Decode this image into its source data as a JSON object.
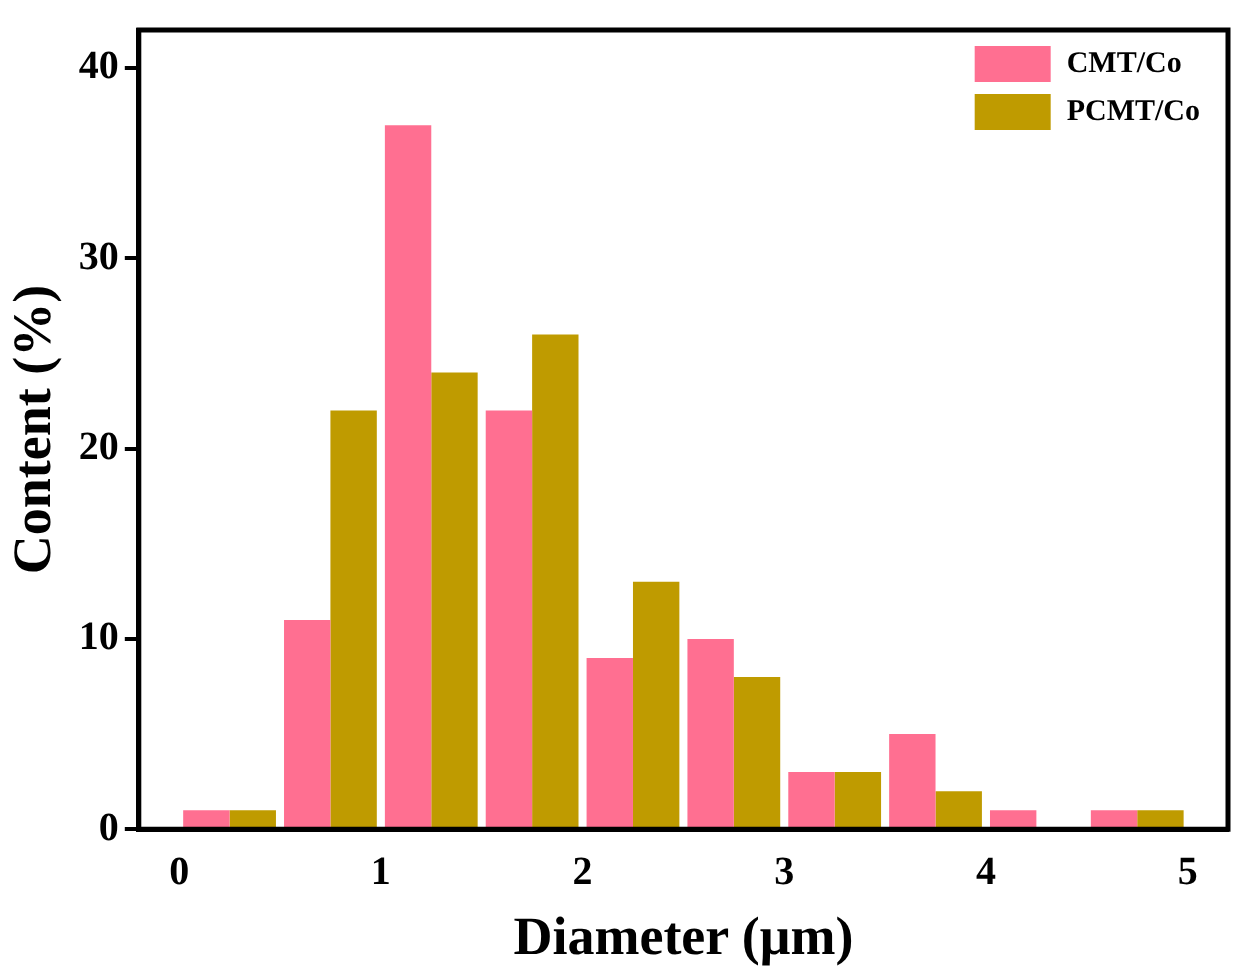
{
  "chart_data": {
    "type": "bar",
    "xlabel": "Diameter (μm)",
    "ylabel": "Content (%)",
    "x": [
      0.25,
      0.75,
      1.25,
      1.75,
      2.25,
      2.75,
      3.25,
      3.75,
      4.25,
      4.75
    ],
    "series": [
      {
        "name": "CMT/Co",
        "color": "#ff6f91",
        "values": [
          1,
          11,
          37,
          22,
          9,
          10,
          3,
          5,
          1,
          1
        ]
      },
      {
        "name": "PCMT/Co",
        "color": "#bf9b00",
        "values": [
          1,
          22,
          24,
          26,
          13,
          8,
          3,
          2,
          0,
          1
        ]
      }
    ],
    "xlim": [
      -0.2,
      5.2
    ],
    "xticks": [
      0,
      1,
      2,
      3,
      4,
      5
    ],
    "ylim": [
      0,
      42
    ],
    "yticks": [
      0,
      10,
      20,
      30,
      40
    ],
    "grid": false,
    "legend": "top right"
  }
}
